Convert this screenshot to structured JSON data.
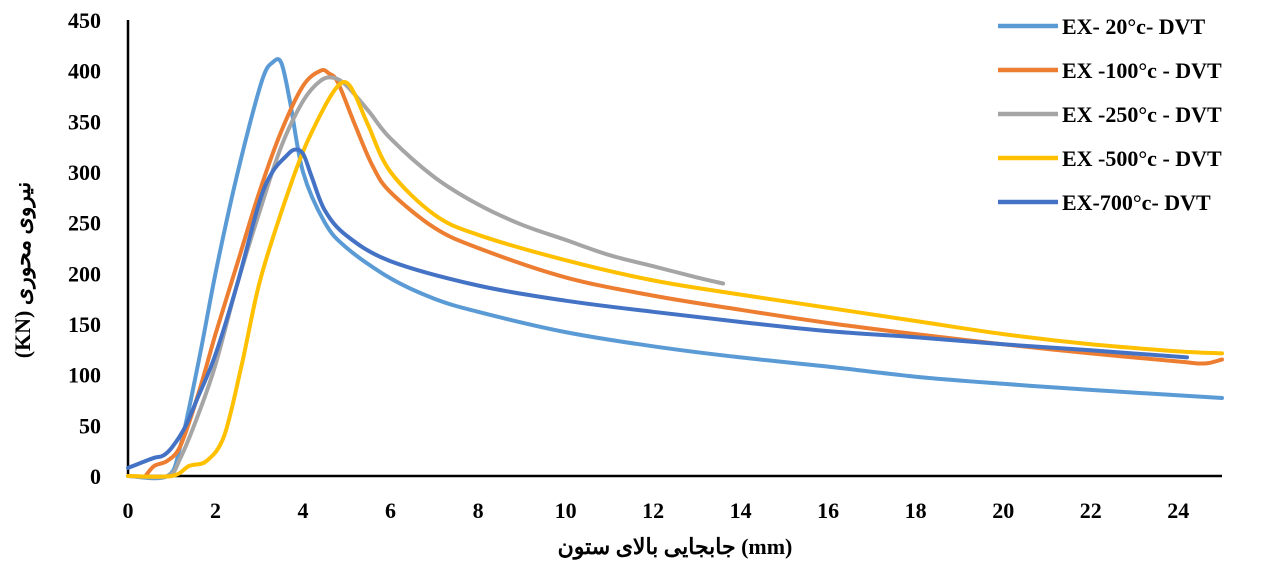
{
  "chart_data": {
    "type": "line",
    "title": "",
    "xlabel": "جابجایی بالای ستون  (mm)",
    "ylabel": "(KN)   نیروی محوری",
    "xlim": [
      0,
      25
    ],
    "ylim": [
      0,
      450
    ],
    "xticks": [
      "0",
      "2",
      "4",
      "6",
      "8",
      "10",
      "12",
      "14",
      "16",
      "18",
      "20",
      "22",
      "24"
    ],
    "yticks": [
      "0",
      "50",
      "100",
      "150",
      "200",
      "250",
      "300",
      "350",
      "400",
      "450"
    ],
    "grid": false,
    "legend_position": "top-right",
    "series": [
      {
        "name": "EX- 20°c- DVT",
        "color": "#5B9BD5",
        "points": [
          [
            0,
            0
          ],
          [
            0.9,
            0
          ],
          [
            1.2,
            30
          ],
          [
            1.6,
            110
          ],
          [
            2,
            200
          ],
          [
            2.4,
            280
          ],
          [
            2.8,
            350
          ],
          [
            3.1,
            395
          ],
          [
            3.3,
            408
          ],
          [
            3.5,
            408
          ],
          [
            3.7,
            370
          ],
          [
            4,
            300
          ],
          [
            4.5,
            250
          ],
          [
            5,
            225
          ],
          [
            6,
            195
          ],
          [
            7,
            175
          ],
          [
            8,
            162
          ],
          [
            10,
            142
          ],
          [
            12,
            128
          ],
          [
            14,
            117
          ],
          [
            16,
            108
          ],
          [
            18,
            98
          ],
          [
            20,
            91
          ],
          [
            22,
            85
          ],
          [
            25,
            77
          ]
        ]
      },
      {
        "name": "EX -100°c - DVT",
        "color": "#ED7D31",
        "points": [
          [
            0.4,
            0
          ],
          [
            0.6,
            10
          ],
          [
            0.9,
            15
          ],
          [
            1.2,
            30
          ],
          [
            1.6,
            80
          ],
          [
            2,
            140
          ],
          [
            2.5,
            210
          ],
          [
            3,
            280
          ],
          [
            3.5,
            340
          ],
          [
            4,
            385
          ],
          [
            4.4,
            400
          ],
          [
            4.6,
            397
          ],
          [
            4.8,
            388
          ],
          [
            5.2,
            345
          ],
          [
            5.6,
            305
          ],
          [
            6,
            280
          ],
          [
            7,
            245
          ],
          [
            8,
            225
          ],
          [
            10,
            196
          ],
          [
            12,
            178
          ],
          [
            14,
            164
          ],
          [
            16,
            151
          ],
          [
            18,
            140
          ],
          [
            20,
            130
          ],
          [
            22,
            121
          ],
          [
            24,
            113
          ],
          [
            24.6,
            111
          ],
          [
            25,
            115
          ]
        ]
      },
      {
        "name": "EX -250°c - DVT",
        "color": "#A5A5A5",
        "points": [
          [
            0,
            0
          ],
          [
            0.9,
            0
          ],
          [
            1.2,
            18
          ],
          [
            1.6,
            60
          ],
          [
            2,
            110
          ],
          [
            2.5,
            190
          ],
          [
            3,
            260
          ],
          [
            3.5,
            325
          ],
          [
            4,
            370
          ],
          [
            4.4,
            390
          ],
          [
            4.7,
            393
          ],
          [
            5,
            385
          ],
          [
            5.5,
            360
          ],
          [
            6,
            333
          ],
          [
            7,
            295
          ],
          [
            8,
            268
          ],
          [
            9,
            248
          ],
          [
            10,
            233
          ],
          [
            11,
            218
          ],
          [
            12,
            207
          ],
          [
            13,
            196
          ],
          [
            13.6,
            190
          ]
        ]
      },
      {
        "name": "EX -500°c - DVT",
        "color": "#FFC000",
        "points": [
          [
            0,
            0
          ],
          [
            1,
            0
          ],
          [
            1.4,
            10
          ],
          [
            1.8,
            15
          ],
          [
            2.2,
            40
          ],
          [
            2.6,
            110
          ],
          [
            3,
            190
          ],
          [
            3.5,
            260
          ],
          [
            4,
            320
          ],
          [
            4.5,
            365
          ],
          [
            4.8,
            385
          ],
          [
            5,
            388
          ],
          [
            5.2,
            375
          ],
          [
            5.5,
            345
          ],
          [
            6,
            300
          ],
          [
            7,
            258
          ],
          [
            8,
            238
          ],
          [
            10,
            213
          ],
          [
            12,
            193
          ],
          [
            14,
            179
          ],
          [
            16,
            166
          ],
          [
            18,
            153
          ],
          [
            20,
            140
          ],
          [
            22,
            130
          ],
          [
            24,
            123
          ],
          [
            25,
            121
          ]
        ]
      },
      {
        "name": "EX-700°c- DVT",
        "color": "#4472C4",
        "points": [
          [
            0,
            8
          ],
          [
            0.3,
            13
          ],
          [
            0.6,
            18
          ],
          [
            0.8,
            20
          ],
          [
            1,
            28
          ],
          [
            1.3,
            48
          ],
          [
            1.6,
            78
          ],
          [
            2,
            120
          ],
          [
            2.5,
            190
          ],
          [
            3,
            270
          ],
          [
            3.3,
            300
          ],
          [
            3.6,
            315
          ],
          [
            3.8,
            322
          ],
          [
            4,
            318
          ],
          [
            4.2,
            295
          ],
          [
            4.5,
            262
          ],
          [
            5,
            237
          ],
          [
            6,
            212
          ],
          [
            8,
            188
          ],
          [
            10,
            173
          ],
          [
            12,
            162
          ],
          [
            14,
            152
          ],
          [
            16,
            143
          ],
          [
            18,
            137
          ],
          [
            20,
            130
          ],
          [
            22,
            124
          ],
          [
            24.2,
            117
          ]
        ]
      }
    ]
  }
}
